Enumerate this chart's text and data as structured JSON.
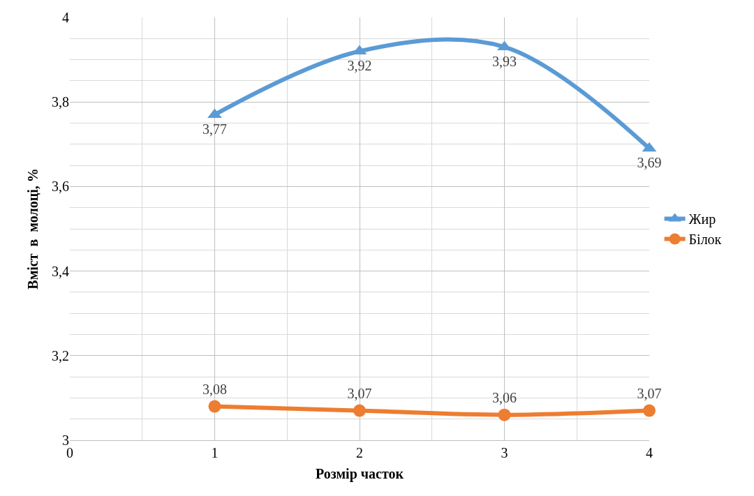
{
  "chart_data": {
    "type": "line",
    "xlabel": "Розмір часток",
    "ylabel": "Вміст  в  молоці, %",
    "x": [
      1,
      2,
      3,
      4
    ],
    "series": [
      {
        "name": "Жир",
        "color": "#5b9bd5",
        "marker": "triangle",
        "values": [
          3.77,
          3.92,
          3.93,
          3.69
        ],
        "value_labels": [
          "3,77",
          "3,92",
          "3,93",
          "3,69"
        ]
      },
      {
        "name": "Білок",
        "color": "#ed7d31",
        "marker": "circle",
        "values": [
          3.08,
          3.07,
          3.06,
          3.07
        ],
        "value_labels": [
          "3,08",
          "3,07",
          "3,06",
          "3,07"
        ]
      }
    ],
    "xlim": [
      0,
      4
    ],
    "xticks": [
      0,
      1,
      2,
      3,
      4
    ],
    "ylim": [
      3,
      4
    ],
    "yticks": [
      3,
      {
        "value": 3.2,
        "label": "3,2"
      },
      {
        "value": 3.4,
        "label": "3,4"
      },
      {
        "value": 3.6,
        "label": "3,6"
      },
      {
        "value": 3.8,
        "label": "3,8"
      },
      4
    ],
    "grid": true,
    "legend": "right",
    "line_style": "solid"
  }
}
